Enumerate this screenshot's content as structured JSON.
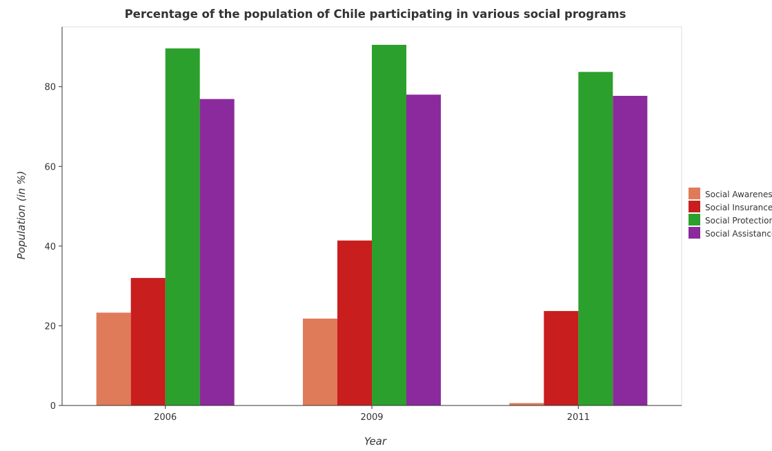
{
  "chart_data": {
    "type": "bar",
    "title": "Percentage of the population of Chile participating in various social programs",
    "xlabel": "Year",
    "ylabel": "Population (in %)",
    "categories": [
      "2006",
      "2009",
      "2011"
    ],
    "ylim": [
      0,
      95
    ],
    "yticks": [
      0,
      20,
      40,
      60,
      80
    ],
    "grid": false,
    "legend_position": "right",
    "series": [
      {
        "name": "Social Awareness",
        "color": "#e07b5a",
        "values": [
          23.3,
          21.8,
          0.6
        ]
      },
      {
        "name": "Social Insurance",
        "color": "#c81e1e",
        "values": [
          32.0,
          41.4,
          23.7
        ]
      },
      {
        "name": "Social Protection",
        "color": "#2ca02c",
        "values": [
          89.6,
          90.5,
          83.7
        ]
      },
      {
        "name": "Social Assistance",
        "color": "#8b2a9c",
        "values": [
          76.9,
          78.0,
          77.7
        ]
      }
    ]
  }
}
